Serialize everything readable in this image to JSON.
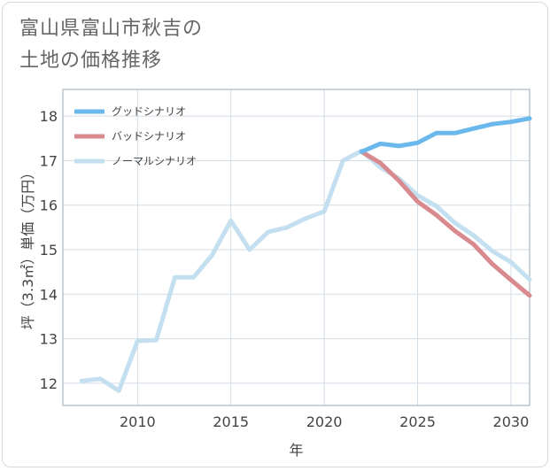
{
  "page": {
    "title_line1": "富山県富山市秋吉の",
    "title_line2": "土地の価格推移"
  },
  "chart_data": {
    "type": "line",
    "title": "富山県富山市秋吉の土地の価格推移",
    "xlabel": "年",
    "ylabel": "坪（3.3㎡）単価（万円）",
    "xlim": [
      2006,
      2031
    ],
    "ylim": [
      11.5,
      18.6
    ],
    "x_ticks": [
      2010,
      2015,
      2020,
      2025,
      2030
    ],
    "y_ticks": [
      12,
      13,
      14,
      15,
      16,
      17,
      18
    ],
    "grid": true,
    "legend_position": "top-left",
    "series": [
      {
        "name": "グッドシナリオ",
        "color": "#6bb8ec",
        "x": [
          2022,
          2023,
          2024,
          2025,
          2026,
          2027,
          2028,
          2029,
          2030,
          2031
        ],
        "values": [
          17.2,
          17.38,
          17.33,
          17.4,
          17.62,
          17.62,
          17.72,
          17.82,
          17.87,
          17.95
        ]
      },
      {
        "name": "バッドシナリオ",
        "color": "#d98a8f",
        "x": [
          2022,
          2023,
          2024,
          2025,
          2026,
          2027,
          2028,
          2029,
          2030,
          2031
        ],
        "values": [
          17.2,
          16.95,
          16.55,
          16.08,
          15.78,
          15.42,
          15.12,
          14.68,
          14.32,
          13.97
        ]
      },
      {
        "name": "ノーマルシナリオ",
        "color": "#c3dff0",
        "x": [
          2007,
          2008,
          2009,
          2010,
          2011,
          2012,
          2013,
          2014,
          2015,
          2016,
          2017,
          2018,
          2019,
          2020,
          2021,
          2022,
          2023,
          2024,
          2025,
          2026,
          2027,
          2028,
          2029,
          2030,
          2031
        ],
        "values": [
          12.05,
          12.1,
          11.83,
          12.95,
          12.97,
          14.38,
          14.38,
          14.88,
          15.65,
          15.0,
          15.4,
          15.5,
          15.7,
          15.86,
          17.0,
          17.22,
          16.85,
          16.6,
          16.22,
          15.98,
          15.6,
          15.32,
          14.97,
          14.72,
          14.33
        ]
      }
    ]
  }
}
